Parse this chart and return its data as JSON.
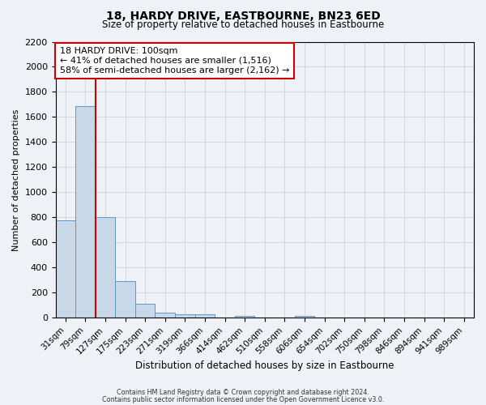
{
  "title": "18, HARDY DRIVE, EASTBOURNE, BN23 6ED",
  "subtitle": "Size of property relative to detached houses in Eastbourne",
  "xlabel": "Distribution of detached houses by size in Eastbourne",
  "ylabel": "Number of detached properties",
  "bar_categories": [
    "31sqm",
    "79sqm",
    "127sqm",
    "175sqm",
    "223sqm",
    "271sqm",
    "319sqm",
    "366sqm",
    "414sqm",
    "462sqm",
    "510sqm",
    "558sqm",
    "606sqm",
    "654sqm",
    "702sqm",
    "750sqm",
    "798sqm",
    "846sqm",
    "894sqm",
    "941sqm",
    "989sqm"
  ],
  "bar_values": [
    775,
    1685,
    800,
    295,
    110,
    38,
    25,
    25,
    0,
    18,
    0,
    0,
    18,
    0,
    0,
    0,
    0,
    0,
    0,
    0,
    0
  ],
  "bar_color": "#c8d8e8",
  "bar_edge_color": "#5a9ac8",
  "property_line_color": "#cc0000",
  "property_line_bin": 2,
  "ylim": [
    0,
    2200
  ],
  "yticks": [
    0,
    200,
    400,
    600,
    800,
    1000,
    1200,
    1400,
    1600,
    1800,
    2000,
    2200
  ],
  "annotation_text": "18 HARDY DRIVE: 100sqm\n← 41% of detached houses are smaller (1,516)\n58% of semi-detached houses are larger (2,162) →",
  "annotation_box_color": "#ffffff",
  "annotation_box_edge": "#cc0000",
  "footer_line1": "Contains HM Land Registry data © Crown copyright and database right 2024.",
  "footer_line2": "Contains public sector information licensed under the Open Government Licence v3.0.",
  "bg_color": "#eef2f7",
  "grid_color": "#cccccc",
  "figsize": [
    6.0,
    5.0
  ],
  "dpi": 100
}
